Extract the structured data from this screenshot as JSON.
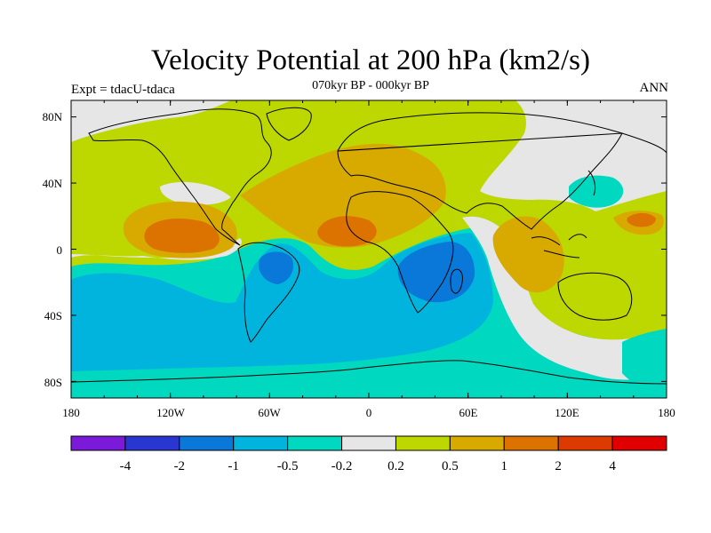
{
  "title": "Velocity Potential at 200 hPa (km2/s)",
  "subtitle": "070kyr BP - 000kyr BP",
  "left_string": "Expt = tdacU-tdaca",
  "right_string": "ANN",
  "lat_ticks": [
    "80N",
    "40N",
    "0",
    "40S",
    "80S"
  ],
  "lon_ticks": [
    "180",
    "120W",
    "60W",
    "0",
    "60E",
    "120E",
    "180"
  ],
  "colorbar": {
    "colors": [
      "#7b1ad8",
      "#2a36d0",
      "#0a78d8",
      "#00b4de",
      "#00d8c0",
      "#e6e6e6",
      "#bcd800",
      "#d8aa00",
      "#dc7200",
      "#dc3a00",
      "#e00000"
    ],
    "labels": [
      "-4",
      "-2",
      "-1",
      "-0.5",
      "-0.2",
      "0.2",
      "0.5",
      "1",
      "2",
      "4"
    ]
  }
}
